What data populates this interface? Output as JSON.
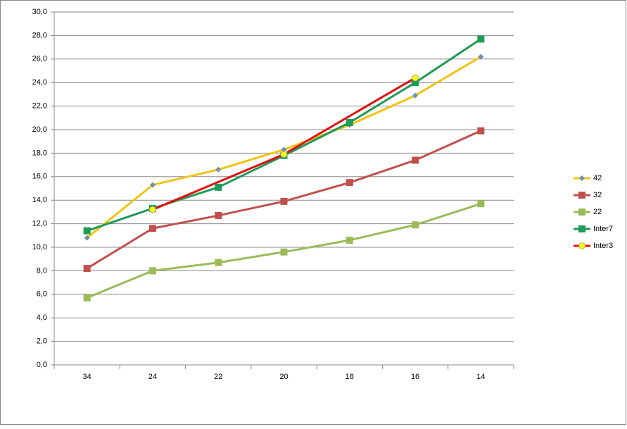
{
  "chart_data": {
    "type": "line",
    "categories": [
      "34",
      "24",
      "22",
      "20",
      "18",
      "16",
      "14"
    ],
    "series": [
      {
        "name": "42",
        "color": "#f2c314",
        "marker": "diamond",
        "marker_color": "#6f8fb0",
        "values": [
          10.8,
          15.3,
          16.6,
          18.3,
          20.4,
          22.9,
          26.2
        ]
      },
      {
        "name": "32",
        "color": "#c0504d",
        "marker": "square",
        "marker_color": "#c0504d",
        "values": [
          8.2,
          11.6,
          12.7,
          13.9,
          15.5,
          17.4,
          19.9
        ]
      },
      {
        "name": "22",
        "color": "#9bbb59",
        "marker": "square",
        "marker_color": "#9bbb59",
        "values": [
          5.7,
          8.0,
          8.7,
          9.6,
          10.6,
          11.9,
          13.7
        ]
      },
      {
        "name": "Inter7",
        "color": "#1f9a57",
        "marker": "square",
        "marker_color": "#1f9a57",
        "values": [
          11.4,
          13.3,
          15.1,
          17.8,
          20.6,
          24.0,
          27.7
        ]
      },
      {
        "name": "Inter3",
        "color": "#e01010",
        "marker": "circle",
        "marker_color": "#ffff00",
        "values": [
          null,
          13.2,
          null,
          17.9,
          null,
          24.4,
          null
        ]
      }
    ],
    "connect_gaps": true,
    "ylim": [
      0,
      30
    ],
    "yticks": [
      {
        "value": 0,
        "label": "0,0"
      },
      {
        "value": 2,
        "label": "2,0"
      },
      {
        "value": 4,
        "label": "4,0"
      },
      {
        "value": 6,
        "label": "6,0"
      },
      {
        "value": 8,
        "label": "8,0"
      },
      {
        "value": 10,
        "label": "10,0"
      },
      {
        "value": 12,
        "label": "12,0"
      },
      {
        "value": 14,
        "label": "14,0"
      },
      {
        "value": 16,
        "label": "16,0"
      },
      {
        "value": 18,
        "label": "18,0"
      },
      {
        "value": 20,
        "label": "20,0"
      },
      {
        "value": 22,
        "label": "22,0"
      },
      {
        "value": 24,
        "label": "24,0"
      },
      {
        "value": 26,
        "label": "26,0"
      },
      {
        "value": 28,
        "label": "28,0"
      },
      {
        "value": 30,
        "label": "30,0"
      }
    ],
    "grid": true,
    "legend": "right"
  }
}
